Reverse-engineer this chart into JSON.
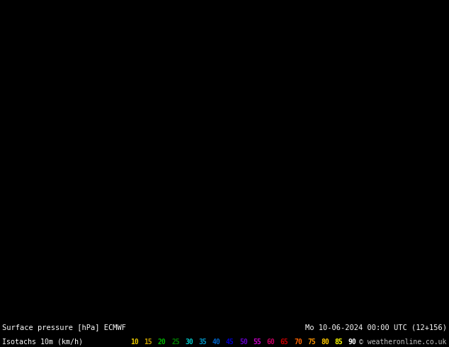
{
  "title_left": "Surface pressure [hPa] ECMWF",
  "title_right": "Mo 10-06-2024 00:00 UTC (12+156)",
  "legend_label": "Isotachs 10m (km/h)",
  "copyright": "© weatheronline.co.uk",
  "bg_color": "#c8f0a0",
  "legend_values": [
    10,
    15,
    20,
    25,
    30,
    35,
    40,
    45,
    50,
    55,
    60,
    65,
    70,
    75,
    80,
    85,
    90
  ],
  "legend_colors": [
    "#f5e400",
    "#e6c800",
    "#00c800",
    "#00a000",
    "#00c8c8",
    "#0096c8",
    "#0064c8",
    "#0000c8",
    "#6400c8",
    "#c800c8",
    "#c80064",
    "#c80000",
    "#ff6400",
    "#ff9600",
    "#ffc800",
    "#ffff00",
    "#ffffff"
  ],
  "bottom_bar_height": 0.08,
  "map_bg": "#c8f0a0",
  "map_area_color": "#d4f0b0",
  "text_color_left": "#ffffff",
  "text_color_right": "#ffffff",
  "label_color": "#ffffff",
  "footer_bg": "#000000",
  "footer_text_color": "#ffffff"
}
